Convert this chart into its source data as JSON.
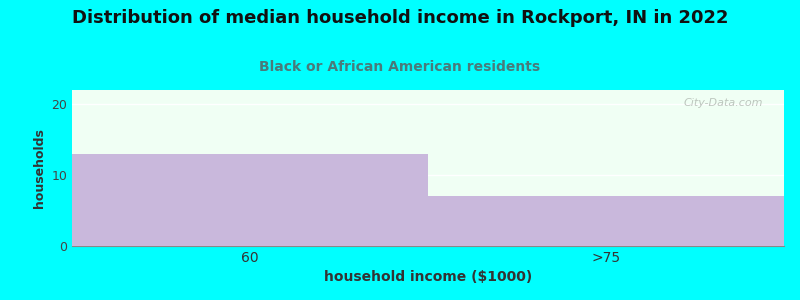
{
  "title": "Distribution of median household income in Rockport, IN in 2022",
  "subtitle": "Black or African American residents",
  "categories": [
    "60",
    ">75"
  ],
  "values": [
    13,
    7
  ],
  "bar_color": "#c9b8dc",
  "xlabel": "household income ($1000)",
  "ylabel": "households",
  "ylim": [
    0,
    22
  ],
  "yticks": [
    0,
    10,
    20
  ],
  "background_color": "#00ffff",
  "plot_bg_color": "#f0fff4",
  "title_fontsize": 13,
  "subtitle_fontsize": 10,
  "subtitle_color": "#4a7a7a",
  "xlabel_fontsize": 10,
  "ylabel_fontsize": 9,
  "watermark": "City-Data.com",
  "grid_color": "#ffffff",
  "bar_width": 1.0
}
